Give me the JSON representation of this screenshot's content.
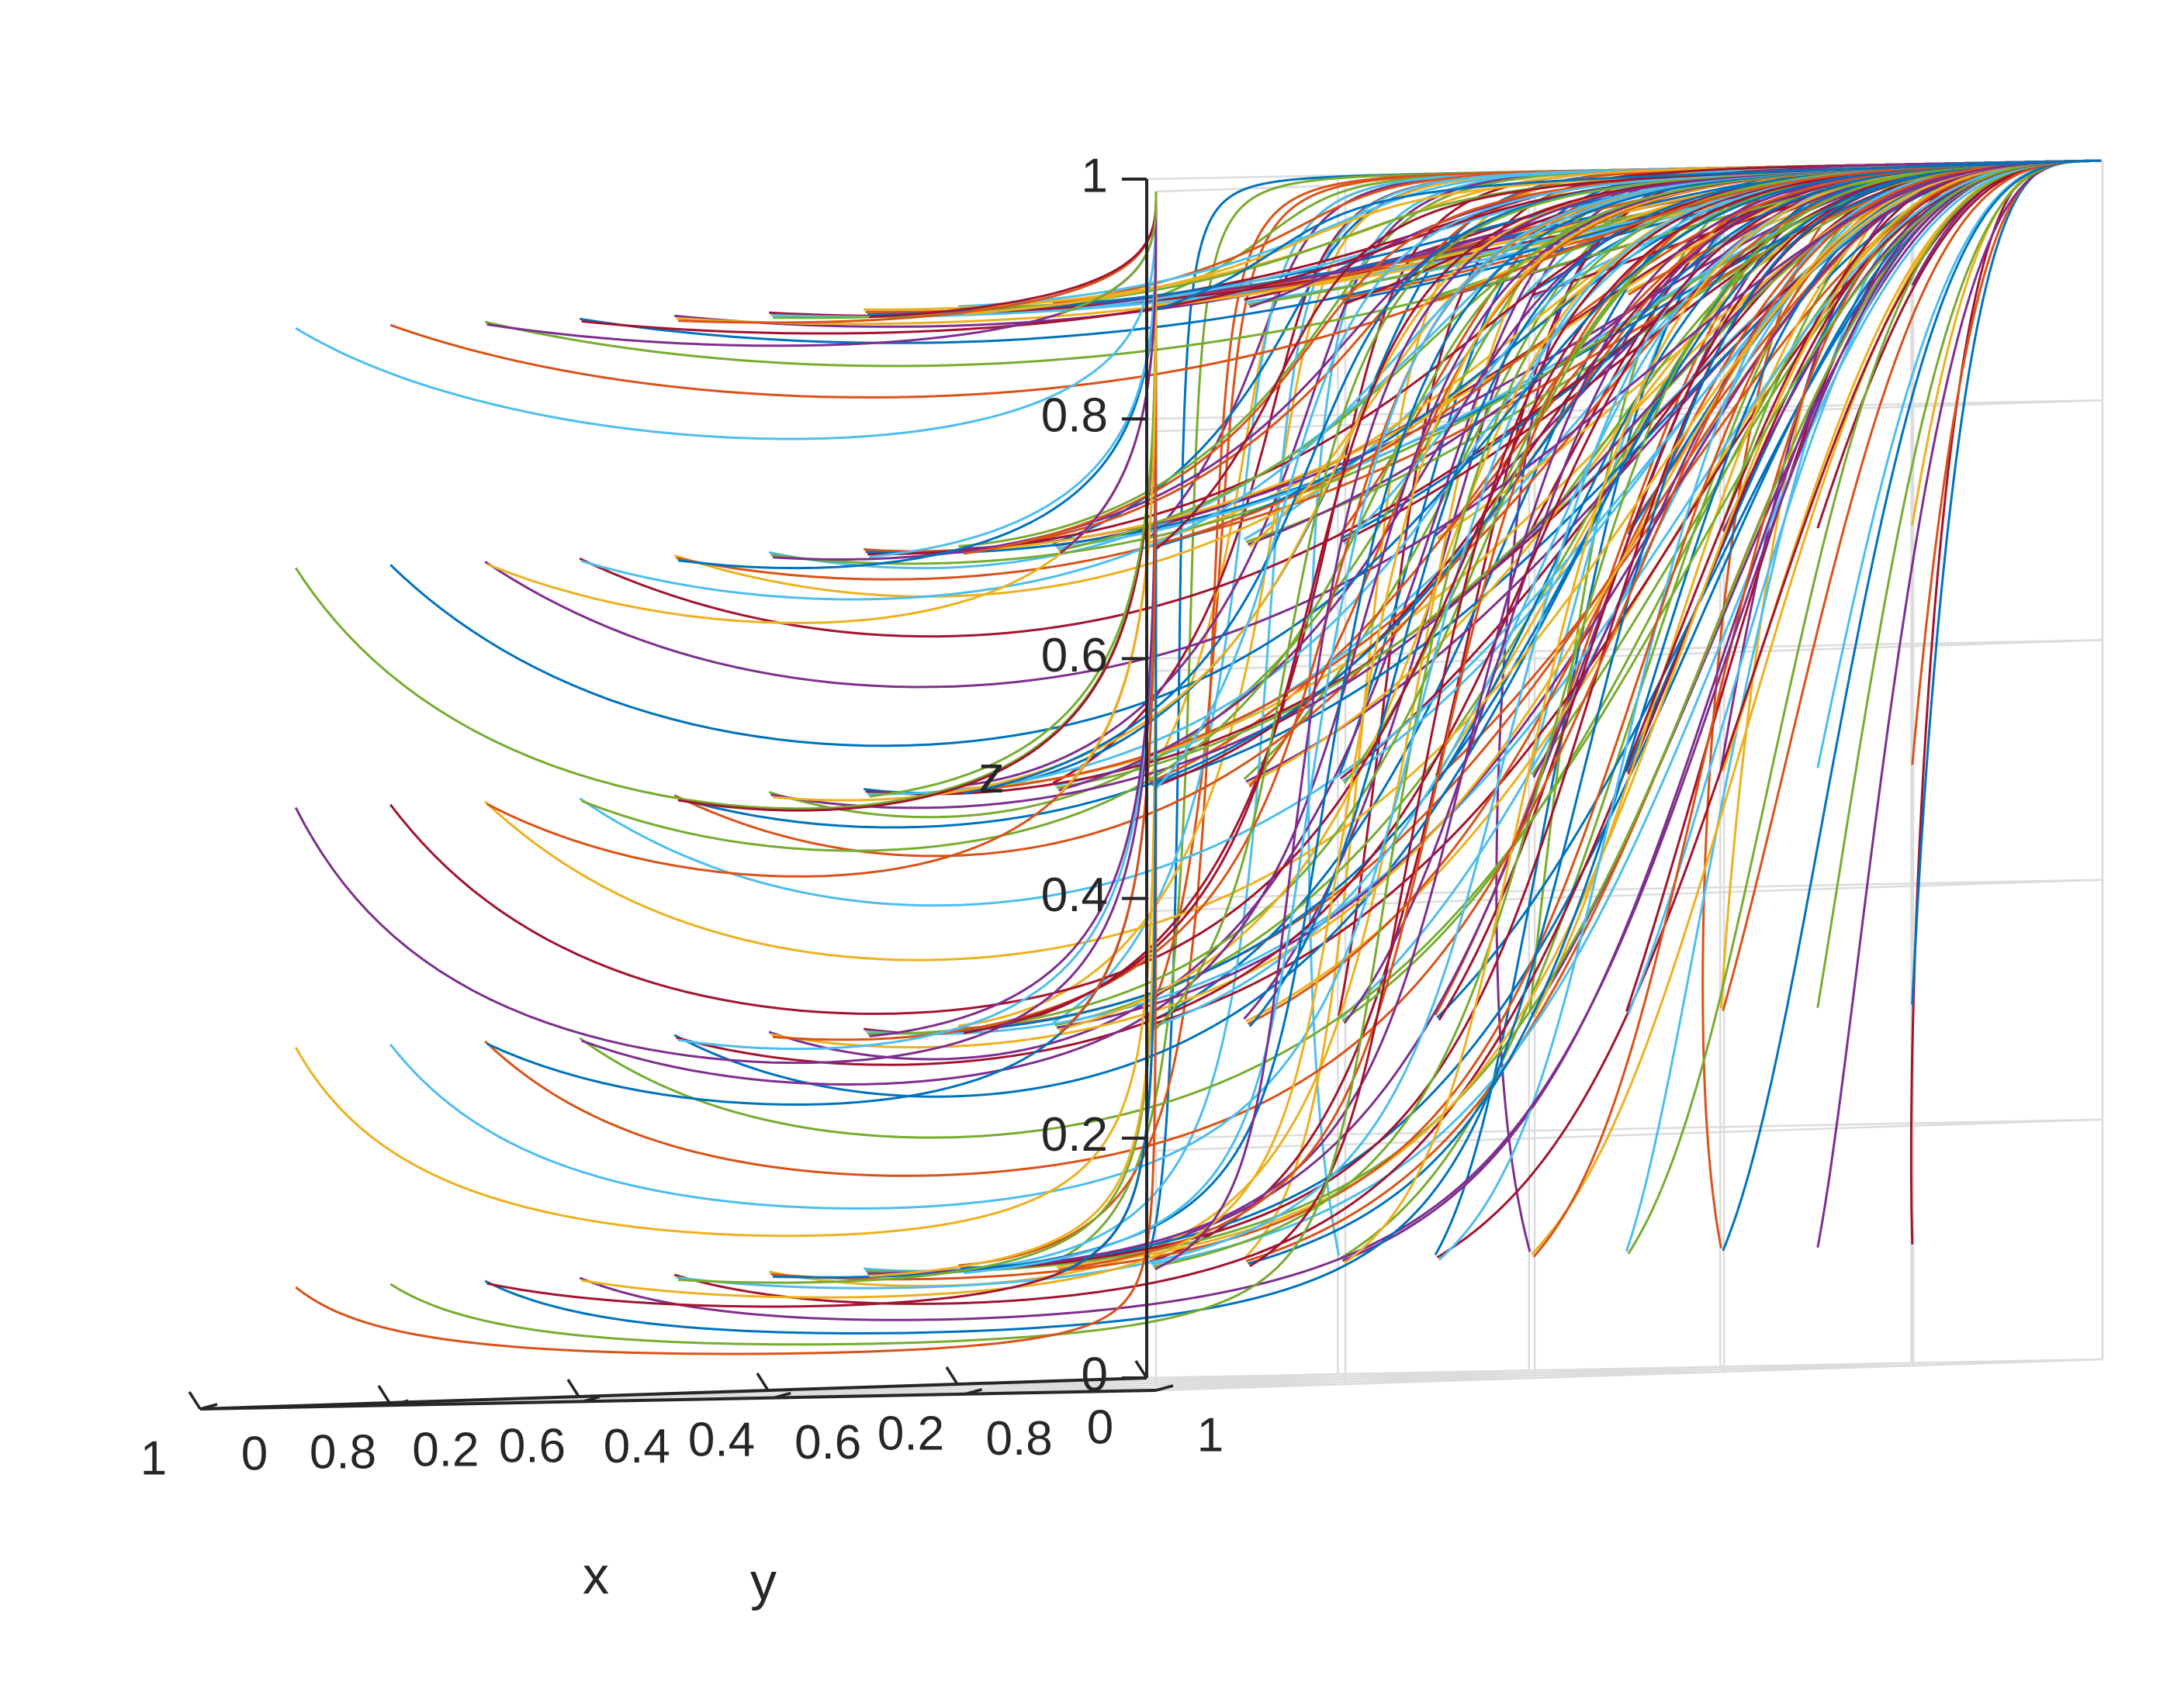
{
  "chart_data": {
    "type": "line",
    "subtype": "3d-trajectories",
    "title": "",
    "xlabel": "x",
    "ylabel": "y",
    "zlabel": "z",
    "xlim": [
      0,
      1
    ],
    "ylim": [
      0,
      1
    ],
    "zlim": [
      0,
      1
    ],
    "xticks": [
      "0",
      "0.2",
      "0.4",
      "0.6",
      "0.8",
      "1"
    ],
    "yticks": [
      "0",
      "0.2",
      "0.4",
      "0.6",
      "0.8",
      "1"
    ],
    "zticks": [
      "0",
      "0.2",
      "0.4",
      "0.6",
      "0.8",
      "1"
    ],
    "grid": true,
    "legend": "none",
    "colors": [
      "#0072BD",
      "#D95319",
      "#EDB120",
      "#7E2F8E",
      "#77AC30",
      "#4DBEEE",
      "#A2142F"
    ],
    "initial_x": [
      0.1,
      0.2,
      0.3,
      0.4,
      0.5,
      0.6,
      0.7,
      0.8,
      0.9,
      1.0
    ],
    "initial_y": [
      0.1,
      0.3,
      0.5,
      0.7,
      0.9
    ],
    "initial_z": [
      0.1,
      0.3,
      0.5,
      0.7,
      0.9
    ],
    "attractor": {
      "x": 0,
      "y": 1,
      "z": 1
    }
  }
}
